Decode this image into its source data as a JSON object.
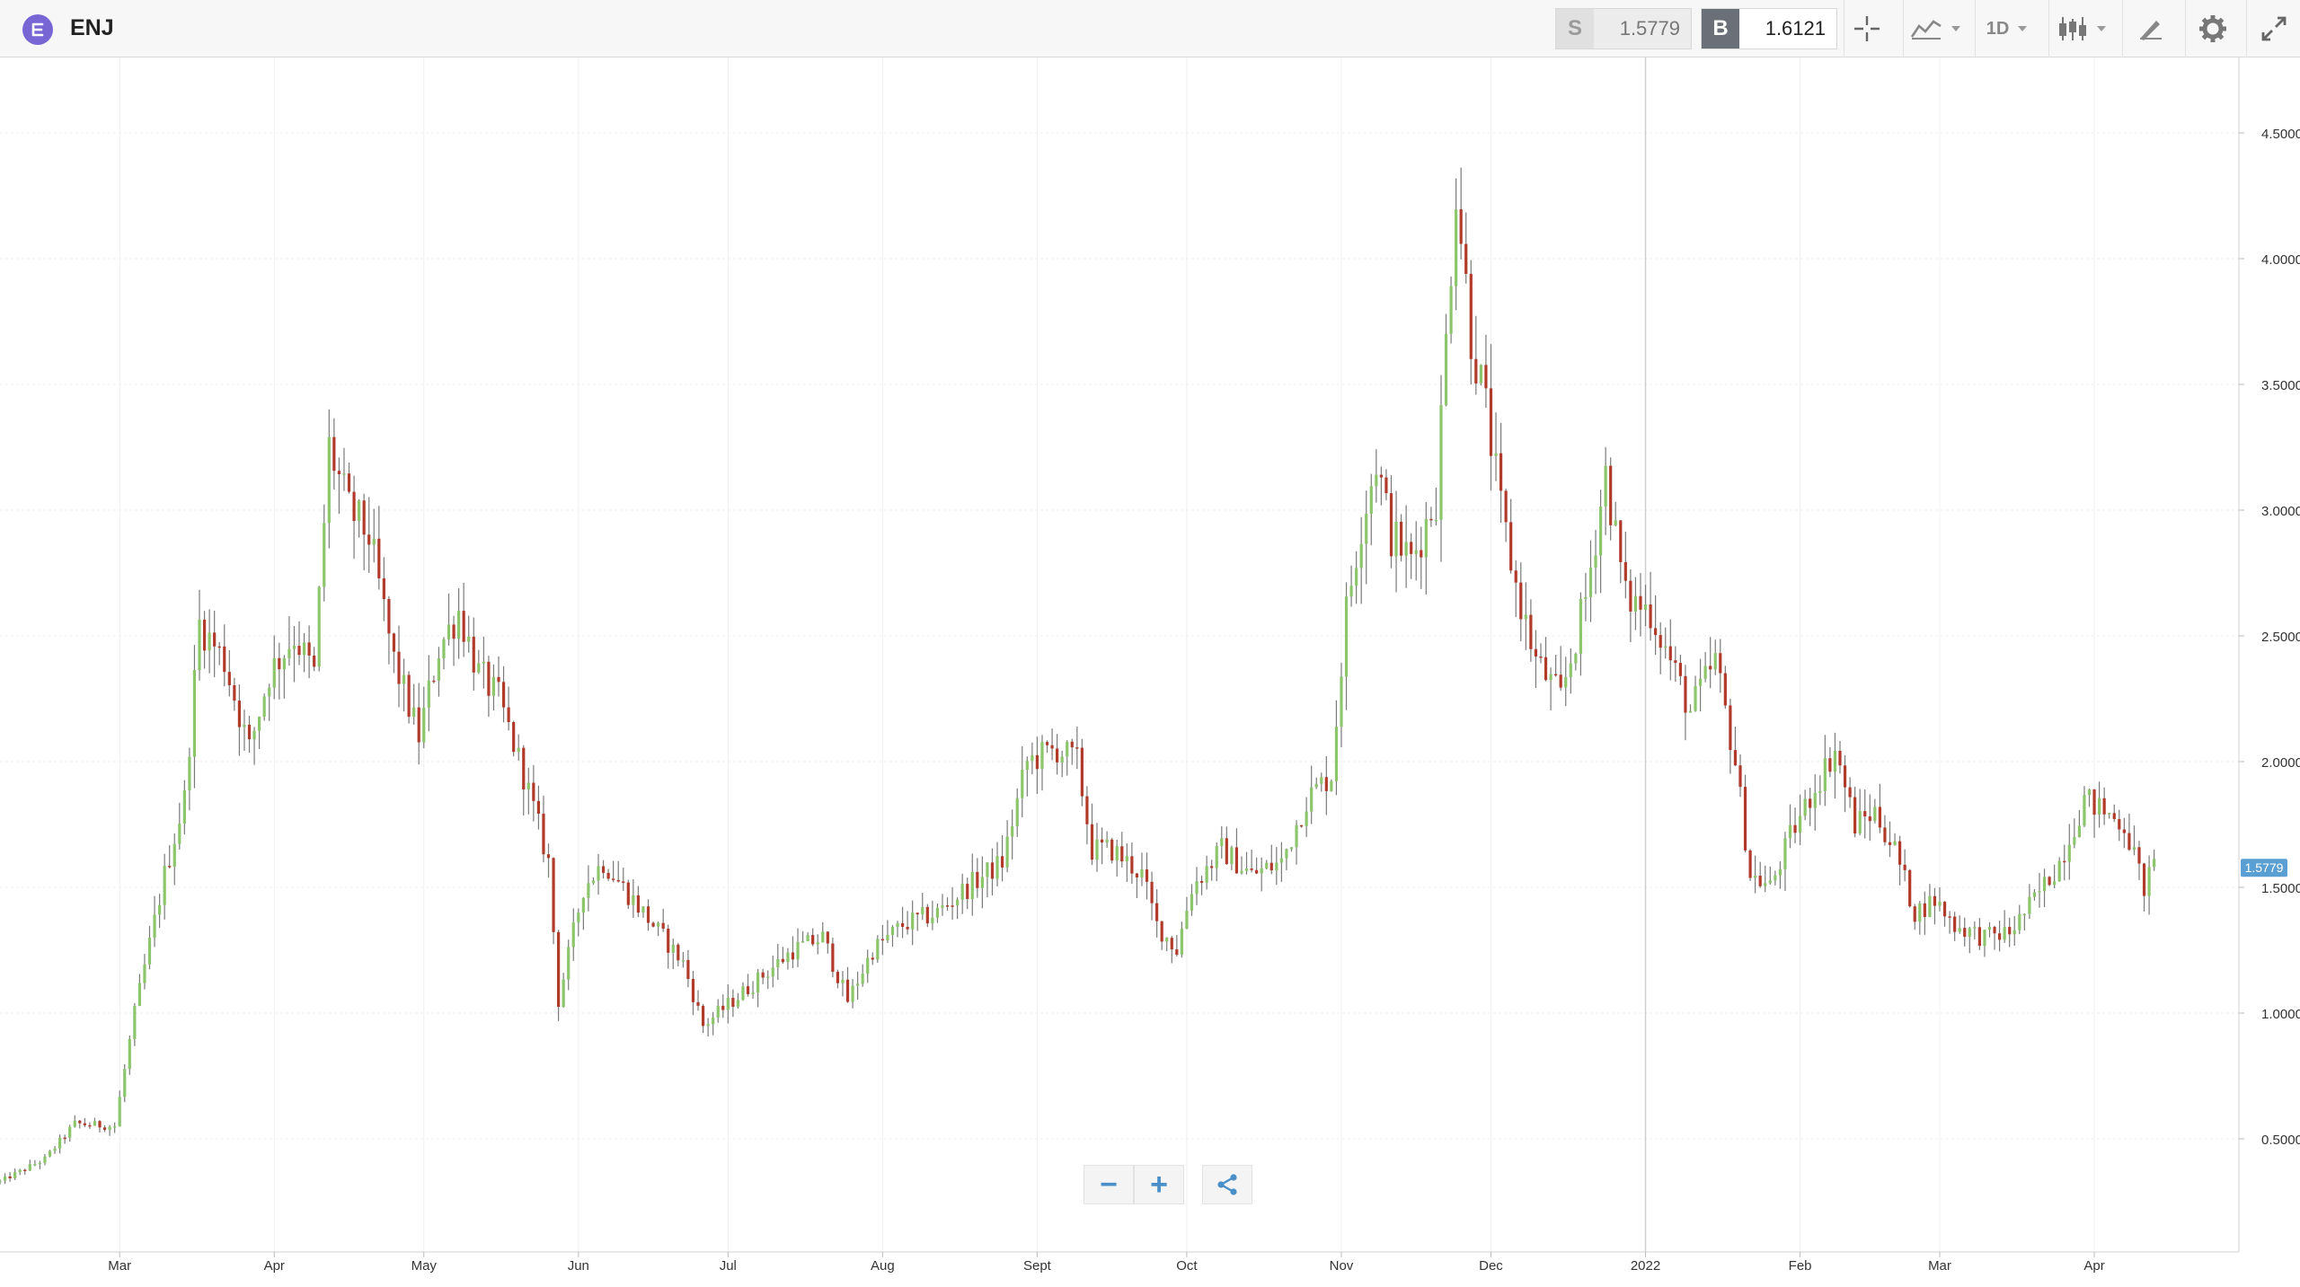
{
  "header": {
    "symbol": "ENJ",
    "symbol_icon": "enjin-logo-icon",
    "sell_label": "S",
    "sell_price": "1.5779",
    "buy_label": "B",
    "buy_price": "1.6121",
    "period": "1D",
    "icons": [
      "crosshair-icon",
      "line-chart-icon",
      "candlestick-icon",
      "draw-icon",
      "gear-icon",
      "expand-icon"
    ]
  },
  "colors": {
    "up": "#8cc66b",
    "down": "#b23a2a",
    "price_tag": "#5a9fd4",
    "brand": "#7866d5",
    "accent": "#4a8fc7"
  },
  "chart_data": {
    "type": "candlestick",
    "title": "ENJ",
    "current_price_label": "1.5779",
    "y_axis": {
      "ticks": [
        "4.5000",
        "4.0000",
        "3.5000",
        "3.0000",
        "2.5000",
        "2.0000",
        "1.5000",
        "1.0000",
        "0.5000"
      ],
      "tick_values": [
        4.5,
        4.0,
        3.5,
        3.0,
        2.5,
        2.0,
        1.5,
        1.0,
        0.5
      ],
      "ylim": [
        0.05,
        4.8
      ],
      "side": "right"
    },
    "x_axis": {
      "ticks": [
        "Mar",
        "Apr",
        "May",
        "Jun",
        "Jul",
        "Aug",
        "Sept",
        "Oct",
        "Nov",
        "Dec",
        "2022",
        "Feb",
        "Mar",
        "Apr"
      ],
      "tick_dates": [
        "2021-03-01",
        "2021-04-01",
        "2021-05-01",
        "2021-06-01",
        "2021-07-01",
        "2021-08-01",
        "2021-09-01",
        "2021-10-01",
        "2021-11-01",
        "2021-12-01",
        "2022-01-01",
        "2022-02-01",
        "2022-03-01",
        "2022-04-01"
      ],
      "range": [
        "2021-02-05",
        "2022-04-30"
      ]
    },
    "vertical_marker_date": "2022-01-01",
    "grid": true,
    "anchors": [
      [
        "2021-02-05",
        0.33
      ],
      [
        "2021-02-14",
        0.42
      ],
      [
        "2021-02-20",
        0.56
      ],
      [
        "2021-02-28",
        0.55
      ],
      [
        "2021-03-04",
        1.0
      ],
      [
        "2021-03-10",
        1.55
      ],
      [
        "2021-03-14",
        1.85
      ],
      [
        "2021-03-17",
        2.55
      ],
      [
        "2021-03-22",
        2.4
      ],
      [
        "2021-03-27",
        2.05
      ],
      [
        "2021-03-31",
        2.35
      ],
      [
        "2021-04-05",
        2.5
      ],
      [
        "2021-04-09",
        2.35
      ],
      [
        "2021-04-12",
        3.25
      ],
      [
        "2021-04-16",
        3.0
      ],
      [
        "2021-04-20",
        2.9
      ],
      [
        "2021-04-25",
        2.4
      ],
      [
        "2021-04-30",
        2.1
      ],
      [
        "2021-05-04",
        2.45
      ],
      [
        "2021-05-08",
        2.6
      ],
      [
        "2021-05-12",
        2.35
      ],
      [
        "2021-05-16",
        2.25
      ],
      [
        "2021-05-21",
        1.95
      ],
      [
        "2021-05-26",
        1.6
      ],
      [
        "2021-05-28",
        1.05
      ],
      [
        "2021-06-02",
        1.5
      ],
      [
        "2021-06-06",
        1.6
      ],
      [
        "2021-06-12",
        1.45
      ],
      [
        "2021-06-18",
        1.3
      ],
      [
        "2021-06-22",
        1.2
      ],
      [
        "2021-06-26",
        0.95
      ],
      [
        "2021-07-02",
        1.05
      ],
      [
        "2021-07-08",
        1.15
      ],
      [
        "2021-07-14",
        1.25
      ],
      [
        "2021-07-20",
        1.3
      ],
      [
        "2021-07-25",
        1.05
      ],
      [
        "2021-07-30",
        1.25
      ],
      [
        "2021-08-05",
        1.35
      ],
      [
        "2021-08-12",
        1.4
      ],
      [
        "2021-08-18",
        1.5
      ],
      [
        "2021-08-25",
        1.6
      ],
      [
        "2021-08-30",
        2.0
      ],
      [
        "2021-09-05",
        2.05
      ],
      [
        "2021-09-09",
        2.0
      ],
      [
        "2021-09-12",
        1.65
      ],
      [
        "2021-09-16",
        1.65
      ],
      [
        "2021-09-22",
        1.55
      ],
      [
        "2021-09-25",
        1.35
      ],
      [
        "2021-09-29",
        1.25
      ],
      [
        "2021-10-02",
        1.5
      ],
      [
        "2021-10-08",
        1.65
      ],
      [
        "2021-10-14",
        1.55
      ],
      [
        "2021-10-20",
        1.6
      ],
      [
        "2021-10-25",
        1.85
      ],
      [
        "2021-10-30",
        1.95
      ],
      [
        "2021-11-02",
        2.6
      ],
      [
        "2021-11-05",
        2.95
      ],
      [
        "2021-11-08",
        3.2
      ],
      [
        "2021-11-11",
        2.9
      ],
      [
        "2021-11-15",
        2.8
      ],
      [
        "2021-11-20",
        3.05
      ],
      [
        "2021-11-24",
        4.3
      ],
      [
        "2021-11-27",
        3.7
      ],
      [
        "2021-11-30",
        3.4
      ],
      [
        "2021-12-03",
        3.0
      ],
      [
        "2021-12-06",
        2.7
      ],
      [
        "2021-12-10",
        2.4
      ],
      [
        "2021-12-15",
        2.25
      ],
      [
        "2021-12-20",
        2.65
      ],
      [
        "2021-12-24",
        3.15
      ],
      [
        "2021-12-28",
        2.65
      ],
      [
        "2022-01-02",
        2.6
      ],
      [
        "2022-01-06",
        2.4
      ],
      [
        "2022-01-10",
        2.2
      ],
      [
        "2022-01-15",
        2.4
      ],
      [
        "2022-01-19",
        2.0
      ],
      [
        "2022-01-22",
        1.55
      ],
      [
        "2022-01-26",
        1.5
      ],
      [
        "2022-01-30",
        1.7
      ],
      [
        "2022-02-04",
        1.9
      ],
      [
        "2022-02-08",
        2.05
      ],
      [
        "2022-02-12",
        1.75
      ],
      [
        "2022-02-16",
        1.8
      ],
      [
        "2022-02-20",
        1.65
      ],
      [
        "2022-02-24",
        1.4
      ],
      [
        "2022-02-28",
        1.45
      ],
      [
        "2022-03-04",
        1.35
      ],
      [
        "2022-03-10",
        1.3
      ],
      [
        "2022-03-15",
        1.32
      ],
      [
        "2022-03-20",
        1.45
      ],
      [
        "2022-03-25",
        1.6
      ],
      [
        "2022-03-30",
        1.85
      ],
      [
        "2022-04-03",
        1.8
      ],
      [
        "2022-04-07",
        1.75
      ],
      [
        "2022-04-11",
        1.5
      ],
      [
        "2022-04-13",
        1.58
      ]
    ]
  }
}
